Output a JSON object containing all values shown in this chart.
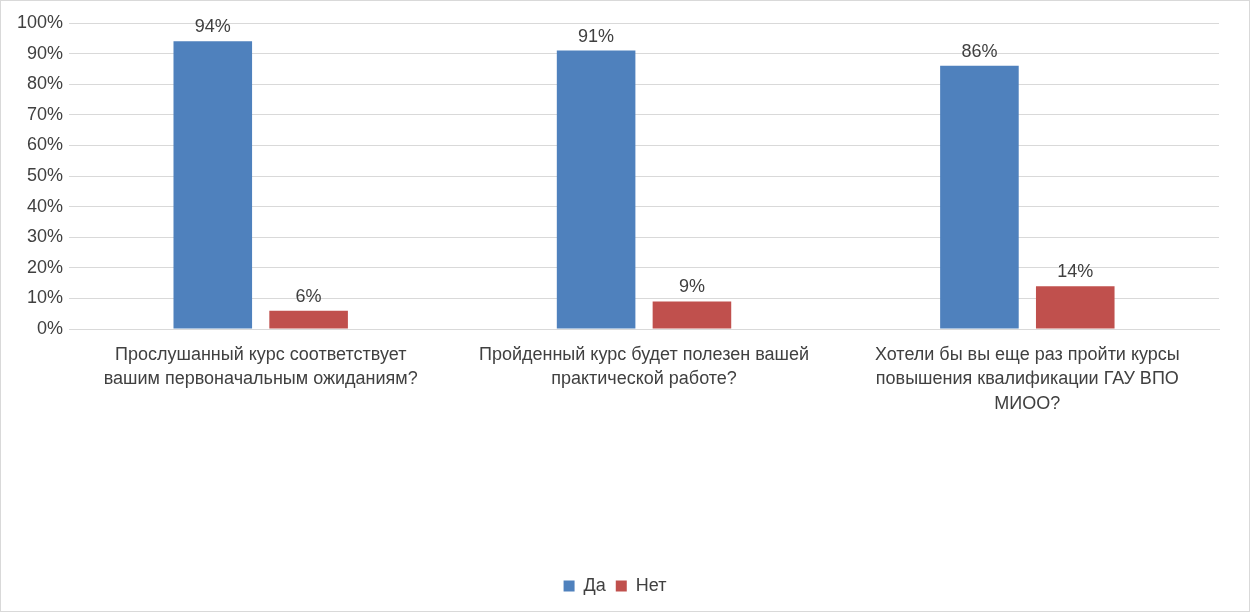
{
  "chart_data": {
    "type": "bar",
    "categories": [
      "Прослушанный курс соответствует вашим первоначальным ожиданиям?",
      "Пройденный курс будет полезен вашей практической работе?",
      "Хотели бы вы еще раз пройти курсы повышения квалификации ГАУ ВПО МИОО?"
    ],
    "series": [
      {
        "name": "Да",
        "color": "#4f81bd",
        "values": [
          94,
          91,
          86
        ],
        "value_labels": [
          "94%",
          "91%",
          "86%"
        ]
      },
      {
        "name": "Нет",
        "color": "#c0504d",
        "values": [
          6,
          9,
          14
        ],
        "value_labels": [
          "6%",
          "9%",
          "14%"
        ]
      }
    ],
    "ylim": [
      0,
      100
    ],
    "yticks": [
      {
        "value": 0,
        "label": "0%"
      },
      {
        "value": 10,
        "label": "10%"
      },
      {
        "value": 20,
        "label": "20%"
      },
      {
        "value": 30,
        "label": "30%"
      },
      {
        "value": 40,
        "label": "40%"
      },
      {
        "value": 50,
        "label": "50%"
      },
      {
        "value": 60,
        "label": "60%"
      },
      {
        "value": 70,
        "label": "70%"
      },
      {
        "value": 80,
        "label": "80%"
      },
      {
        "value": 90,
        "label": "90%"
      },
      {
        "value": 100,
        "label": "100%"
      }
    ],
    "grid": "y",
    "legend": "bottom"
  }
}
